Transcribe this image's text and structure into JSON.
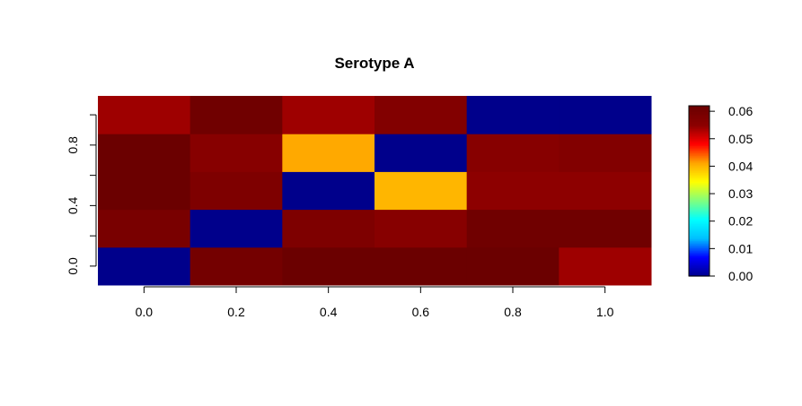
{
  "chart_data": {
    "type": "heatmap",
    "title": "Serotype A",
    "xlabel": "",
    "ylabel": "",
    "x_ticks": [
      "0.0",
      "0.2",
      "0.4",
      "0.6",
      "0.8",
      "1.0"
    ],
    "y_ticks": [
      "0.0",
      "0.4",
      "0.8"
    ],
    "x_centers": [
      0.0,
      0.2,
      0.4,
      0.6,
      0.8,
      1.0
    ],
    "y_centers": [
      0.0,
      0.25,
      0.5,
      0.75,
      1.0
    ],
    "xlim": [
      -0.1,
      1.1
    ],
    "ylim": [
      -0.125,
      1.125
    ],
    "values_by_row_bottom_to_top": [
      [
        0.0,
        0.06,
        0.063,
        0.063,
        0.063,
        0.054
      ],
      [
        0.059,
        0.0,
        0.058,
        0.056,
        0.061,
        0.061
      ],
      [
        0.062,
        0.058,
        0.0,
        0.04,
        0.055,
        0.055
      ],
      [
        0.062,
        0.056,
        0.041,
        0.0,
        0.056,
        0.057
      ],
      [
        0.054,
        0.061,
        0.054,
        0.057,
        0.0,
        0.0
      ]
    ],
    "zlim": [
      0.0,
      0.062
    ],
    "colorbar": {
      "ticks": [
        "0.00",
        "0.01",
        "0.02",
        "0.03",
        "0.04",
        "0.05",
        "0.06"
      ],
      "tick_values": [
        0.0,
        0.01,
        0.02,
        0.03,
        0.04,
        0.05,
        0.06
      ],
      "colors": [
        "#00008B",
        "#0000FF",
        "#00BFFF",
        "#00FFFF",
        "#7FFF7F",
        "#FFFF00",
        "#FFA500",
        "#FF0000",
        "#8B0000",
        "#6B0000"
      ]
    },
    "grid": false,
    "legend": "colorbar-right"
  }
}
